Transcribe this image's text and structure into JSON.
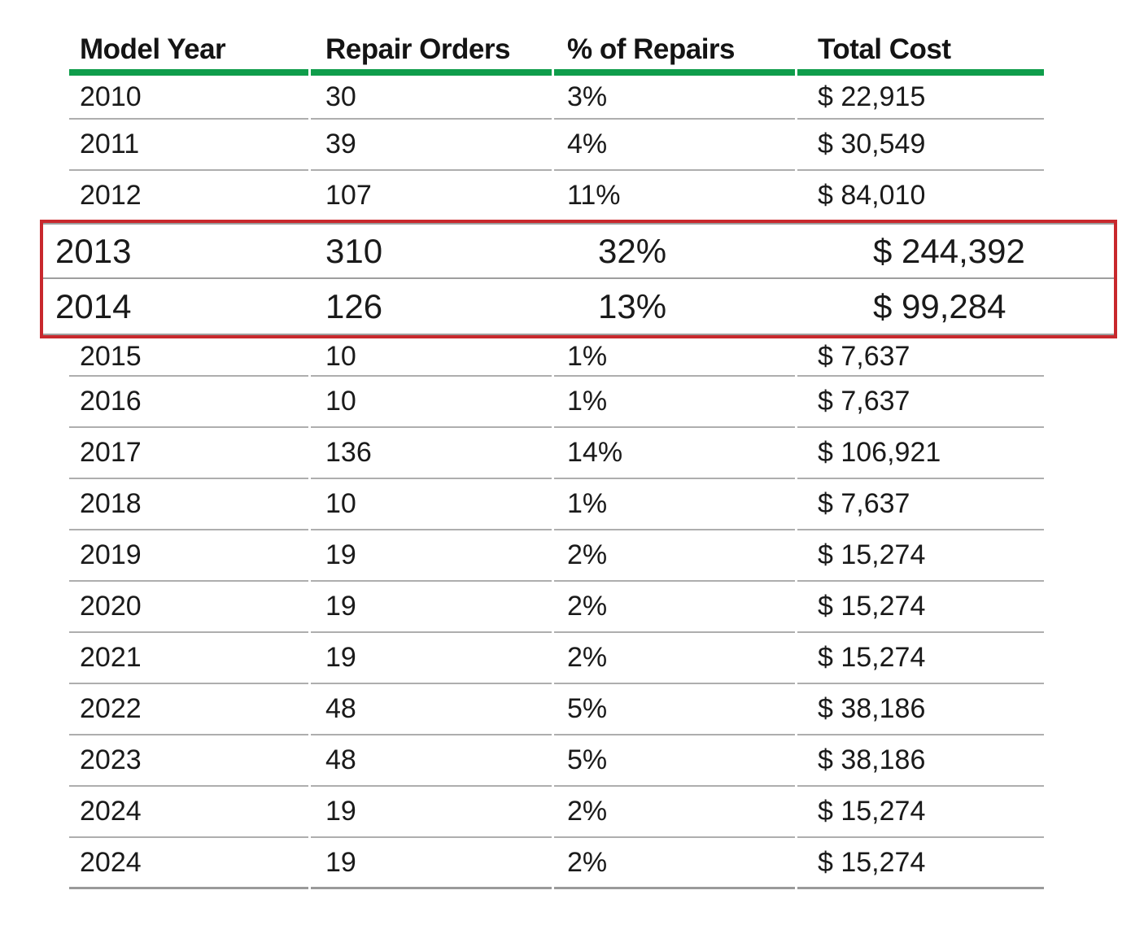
{
  "table": {
    "columns": [
      "Model Year",
      "Repair Orders",
      "% of Repairs",
      "Total Cost"
    ],
    "rows": [
      {
        "model_year": "2010",
        "repair_orders": "30",
        "pct_of_repairs": "3%",
        "total_cost": "$ 22,915",
        "highlighted": false
      },
      {
        "model_year": "2011",
        "repair_orders": "39",
        "pct_of_repairs": "4%",
        "total_cost": "$ 30,549",
        "highlighted": false
      },
      {
        "model_year": "2012",
        "repair_orders": "107",
        "pct_of_repairs": "11%",
        "total_cost": "$ 84,010",
        "highlighted": false
      },
      {
        "model_year": "2013",
        "repair_orders": "310",
        "pct_of_repairs": "32%",
        "total_cost": "$ 244,392",
        "highlighted": true
      },
      {
        "model_year": "2014",
        "repair_orders": "126",
        "pct_of_repairs": "13%",
        "total_cost": "$ 99,284",
        "highlighted": true
      },
      {
        "model_year": "2015",
        "repair_orders": "10",
        "pct_of_repairs": "1%",
        "total_cost": "$ 7,637",
        "highlighted": false
      },
      {
        "model_year": "2016",
        "repair_orders": "10",
        "pct_of_repairs": "1%",
        "total_cost": "$ 7,637",
        "highlighted": false
      },
      {
        "model_year": "2017",
        "repair_orders": "136",
        "pct_of_repairs": "14%",
        "total_cost": "$ 106,921",
        "highlighted": false
      },
      {
        "model_year": "2018",
        "repair_orders": "10",
        "pct_of_repairs": "1%",
        "total_cost": "$ 7,637",
        "highlighted": false
      },
      {
        "model_year": "2019",
        "repair_orders": "19",
        "pct_of_repairs": "2%",
        "total_cost": "$ 15,274",
        "highlighted": false
      },
      {
        "model_year": "2020",
        "repair_orders": "19",
        "pct_of_repairs": "2%",
        "total_cost": "$ 15,274",
        "highlighted": false
      },
      {
        "model_year": "2021",
        "repair_orders": "19",
        "pct_of_repairs": "2%",
        "total_cost": "$ 15,274",
        "highlighted": false
      },
      {
        "model_year": "2022",
        "repair_orders": "48",
        "pct_of_repairs": "5%",
        "total_cost": "$ 38,186",
        "highlighted": false
      },
      {
        "model_year": "2023",
        "repair_orders": "48",
        "pct_of_repairs": "5%",
        "total_cost": "$ 38,186",
        "highlighted": false
      },
      {
        "model_year": "2024",
        "repair_orders": "19",
        "pct_of_repairs": "2%",
        "total_cost": "$ 15,274",
        "highlighted": false
      },
      {
        "model_year": "2024",
        "repair_orders": "19",
        "pct_of_repairs": "2%",
        "total_cost": "$ 15,274",
        "highlighted": false
      }
    ]
  },
  "colors": {
    "header_underline_green": "#0f9d4b",
    "highlight_border_red": "#c8282d",
    "row_divider_gray": "#aeaeae"
  }
}
